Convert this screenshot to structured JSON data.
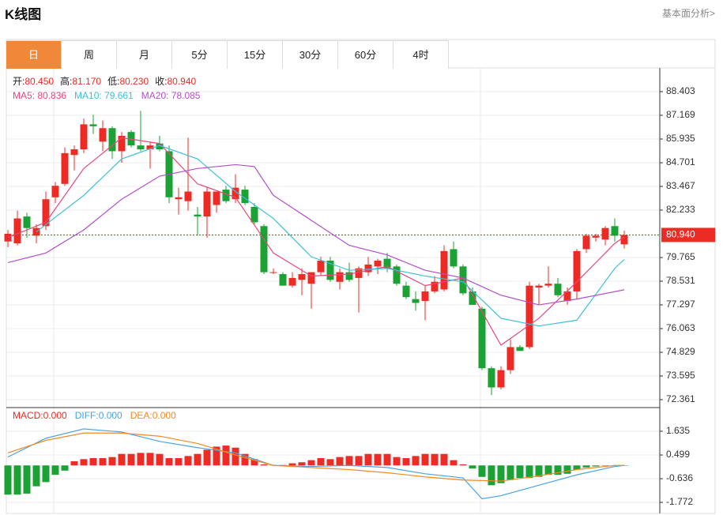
{
  "header": {
    "title": "K线图",
    "link": "基本面分析>"
  },
  "tabs": [
    "日",
    "周",
    "月",
    "5分",
    "15分",
    "30分",
    "60分",
    "4时"
  ],
  "active_tab": 0,
  "chart_data": [
    {
      "type": "candlestick",
      "info": [
        {
          "label": "开:",
          "value": "80.450"
        },
        {
          "label": "高:",
          "value": "81.170"
        },
        {
          "label": "低:",
          "value": "80.230"
        },
        {
          "label": "收:",
          "value": "80.940"
        }
      ],
      "ohlc": [
        [
          80.6,
          81.2,
          80.3,
          81.0
        ],
        [
          80.5,
          82.2,
          80.4,
          81.8
        ],
        [
          81.9,
          82.1,
          80.8,
          81.3
        ],
        [
          80.9,
          81.5,
          80.5,
          81.3
        ],
        [
          81.4,
          83.2,
          81.2,
          82.8
        ],
        [
          82.9,
          83.7,
          82.6,
          83.5
        ],
        [
          83.6,
          85.5,
          83.5,
          85.2
        ],
        [
          85.1,
          85.6,
          84.3,
          85.4
        ],
        [
          85.4,
          87.0,
          85.2,
          86.7
        ],
        [
          86.7,
          87.2,
          86.2,
          86.6
        ],
        [
          85.8,
          86.9,
          85.3,
          86.5
        ],
        [
          86.5,
          86.6,
          84.9,
          85.3
        ],
        [
          85.3,
          86.3,
          84.7,
          86.1
        ],
        [
          86.3,
          86.4,
          85.5,
          85.6
        ],
        [
          85.6,
          87.4,
          85.3,
          85.4
        ],
        [
          85.4,
          85.8,
          84.4,
          85.6
        ],
        [
          85.7,
          86.1,
          85.3,
          85.4
        ],
        [
          85.3,
          85.6,
          82.6,
          82.9
        ],
        [
          82.8,
          83.4,
          82.0,
          82.9
        ],
        [
          82.7,
          86.0,
          82.2,
          83.2
        ],
        [
          82.0,
          82.4,
          80.9,
          81.9
        ],
        [
          81.9,
          83.4,
          80.8,
          83.2
        ],
        [
          82.5,
          83.2,
          82.1,
          83.2
        ],
        [
          83.3,
          83.5,
          82.6,
          82.7
        ],
        [
          82.8,
          84.1,
          82.6,
          83.4
        ],
        [
          83.3,
          83.5,
          82.5,
          82.6
        ],
        [
          82.4,
          82.6,
          81.5,
          81.6
        ],
        [
          81.4,
          81.5,
          78.9,
          79.0
        ],
        [
          79.0,
          79.2,
          78.9,
          79.0
        ],
        [
          78.9,
          79.0,
          78.3,
          78.3
        ],
        [
          78.3,
          79.0,
          78.2,
          78.7
        ],
        [
          78.6,
          79.2,
          77.8,
          78.9
        ],
        [
          78.4,
          79.0,
          77.1,
          79.0
        ],
        [
          79.0,
          79.8,
          78.8,
          79.6
        ],
        [
          79.6,
          79.8,
          78.5,
          78.6
        ],
        [
          78.5,
          79.2,
          78.1,
          79.0
        ],
        [
          79.0,
          79.5,
          78.5,
          78.6
        ],
        [
          78.7,
          79.3,
          76.9,
          79.2
        ],
        [
          79.0,
          79.8,
          78.8,
          79.4
        ],
        [
          79.3,
          79.7,
          78.9,
          79.6
        ],
        [
          79.7,
          80.0,
          79.0,
          79.2
        ],
        [
          79.3,
          79.4,
          78.3,
          78.4
        ],
        [
          78.3,
          78.5,
          77.6,
          77.7
        ],
        [
          77.6,
          78.0,
          77.0,
          77.4
        ],
        [
          77.5,
          78.3,
          76.5,
          78.0
        ],
        [
          78.0,
          78.8,
          77.9,
          78.5
        ],
        [
          78.1,
          80.4,
          78.0,
          80.1
        ],
        [
          80.2,
          80.6,
          79.2,
          79.3
        ],
        [
          79.3,
          79.4,
          77.8,
          77.9
        ],
        [
          78.0,
          78.2,
          77.3,
          77.3
        ],
        [
          77.1,
          77.2,
          73.9,
          74.0
        ],
        [
          74.0,
          74.1,
          72.6,
          73.0
        ],
        [
          73.0,
          74.1,
          72.9,
          73.9
        ],
        [
          73.9,
          75.5,
          73.7,
          75.1
        ],
        [
          75.1,
          75.2,
          74.9,
          74.9
        ],
        [
          75.1,
          78.5,
          75.0,
          78.3
        ],
        [
          78.2,
          78.4,
          77.3,
          78.3
        ],
        [
          78.3,
          79.3,
          78.2,
          78.4
        ],
        [
          78.4,
          78.7,
          77.7,
          77.8
        ],
        [
          77.5,
          78.2,
          77.3,
          78.0
        ],
        [
          78.0,
          80.2,
          77.6,
          80.1
        ],
        [
          80.2,
          81.0,
          80.0,
          80.9
        ],
        [
          80.8,
          81.0,
          80.6,
          80.9
        ],
        [
          80.7,
          81.4,
          80.4,
          81.3
        ],
        [
          81.4,
          81.8,
          80.6,
          80.9
        ],
        [
          80.45,
          81.17,
          80.23,
          80.94
        ]
      ],
      "up_color": "#ec2b24",
      "down_color": "#1ba134",
      "overlays": [
        {
          "label": "MA5: 80.836",
          "color": "#e8477c",
          "x": [
            0,
            4,
            8,
            12,
            16,
            20,
            24,
            28,
            32,
            36,
            40,
            44,
            48,
            52,
            56,
            60,
            64,
            65
          ],
          "values": [
            80.8,
            81.6,
            84.4,
            86.0,
            85.7,
            83.6,
            82.9,
            80.0,
            78.8,
            78.9,
            79.3,
            78.3,
            78.7,
            75.2,
            76.6,
            78.5,
            80.5,
            80.836
          ]
        },
        {
          "label": "MA10: 79.661",
          "color": "#3ebfd8",
          "x": [
            3,
            8,
            12,
            16,
            20,
            24,
            28,
            32,
            36,
            40,
            44,
            48,
            52,
            56,
            60,
            64,
            65
          ],
          "values": [
            81.1,
            83.0,
            84.9,
            85.6,
            84.9,
            83.2,
            81.8,
            79.8,
            79.1,
            79.2,
            78.8,
            78.5,
            76.6,
            76.2,
            76.5,
            79.2,
            79.661
          ]
        },
        {
          "label": "MA20: 78.085",
          "color": "#b24fc8",
          "x": [
            0,
            4,
            8,
            12,
            16,
            20,
            24,
            26,
            28,
            32,
            36,
            40,
            44,
            48,
            52,
            56,
            60,
            65
          ],
          "values": [
            79.5,
            80.0,
            81.2,
            82.8,
            84.0,
            84.4,
            84.6,
            84.5,
            83.0,
            81.7,
            80.4,
            79.9,
            79.1,
            78.7,
            77.8,
            77.3,
            77.6,
            78.085
          ]
        }
      ],
      "last_price": {
        "value": 80.94,
        "label": "80.940"
      },
      "ylim": [
        71.95,
        89.555
      ],
      "yticks": [
        88.403,
        87.169,
        85.935,
        84.701,
        83.467,
        82.233,
        79.765,
        78.531,
        77.297,
        76.063,
        74.829,
        73.595,
        72.361
      ],
      "grid": true
    },
    {
      "type": "macd",
      "hist_label": "MACD:0.000",
      "up_color": "#ec2b24",
      "down_color": "#1ba134",
      "histogram": [
        -1.4,
        -1.4,
        -1.35,
        -1.0,
        -0.8,
        -0.45,
        -0.25,
        0.2,
        0.3,
        0.35,
        0.35,
        0.4,
        0.55,
        0.55,
        0.6,
        0.6,
        0.55,
        0.35,
        0.35,
        0.45,
        0.55,
        0.75,
        0.9,
        0.95,
        0.85,
        0.55,
        0.3,
        0.05,
        0.02,
        0.02,
        0.1,
        0.15,
        0.25,
        0.35,
        0.3,
        0.4,
        0.45,
        0.45,
        0.55,
        0.55,
        0.55,
        0.4,
        0.35,
        0.45,
        0.55,
        0.55,
        0.55,
        0.25,
        0.05,
        -0.15,
        -0.55,
        -0.95,
        -0.85,
        -0.7,
        -0.6,
        -0.6,
        -0.55,
        -0.45,
        -0.45,
        -0.4,
        -0.2,
        -0.1,
        -0.05,
        -0.02,
        -0.02,
        0.0
      ],
      "series": [
        {
          "label": "DIFF:0.000",
          "color": "#4aa3e2",
          "x": [
            0,
            4,
            8,
            12,
            16,
            20,
            24,
            28,
            32,
            36,
            40,
            44,
            48,
            50,
            52,
            56,
            60,
            64,
            65
          ],
          "values": [
            0.4,
            1.3,
            1.75,
            1.6,
            1.15,
            0.85,
            0.6,
            0.0,
            -0.05,
            0.0,
            -0.1,
            -0.4,
            -0.6,
            -1.6,
            -1.45,
            -0.95,
            -0.45,
            -0.05,
            0.0
          ]
        },
        {
          "label": "DEA:0.000",
          "color": "#f08a24",
          "x": [
            0,
            4,
            8,
            12,
            16,
            20,
            24,
            28,
            32,
            36,
            40,
            44,
            48,
            52,
            56,
            60,
            64,
            65
          ],
          "values": [
            0.6,
            1.2,
            1.55,
            1.55,
            1.4,
            1.05,
            0.5,
            0.0,
            -0.1,
            -0.2,
            -0.35,
            -0.55,
            -0.7,
            -0.75,
            -0.5,
            -0.2,
            0.0,
            0.0
          ]
        }
      ],
      "ylim": [
        -2.3,
        2.695
      ],
      "yticks": [
        1.635,
        0.499,
        -0.636,
        -1.772
      ],
      "grid": true
    }
  ]
}
